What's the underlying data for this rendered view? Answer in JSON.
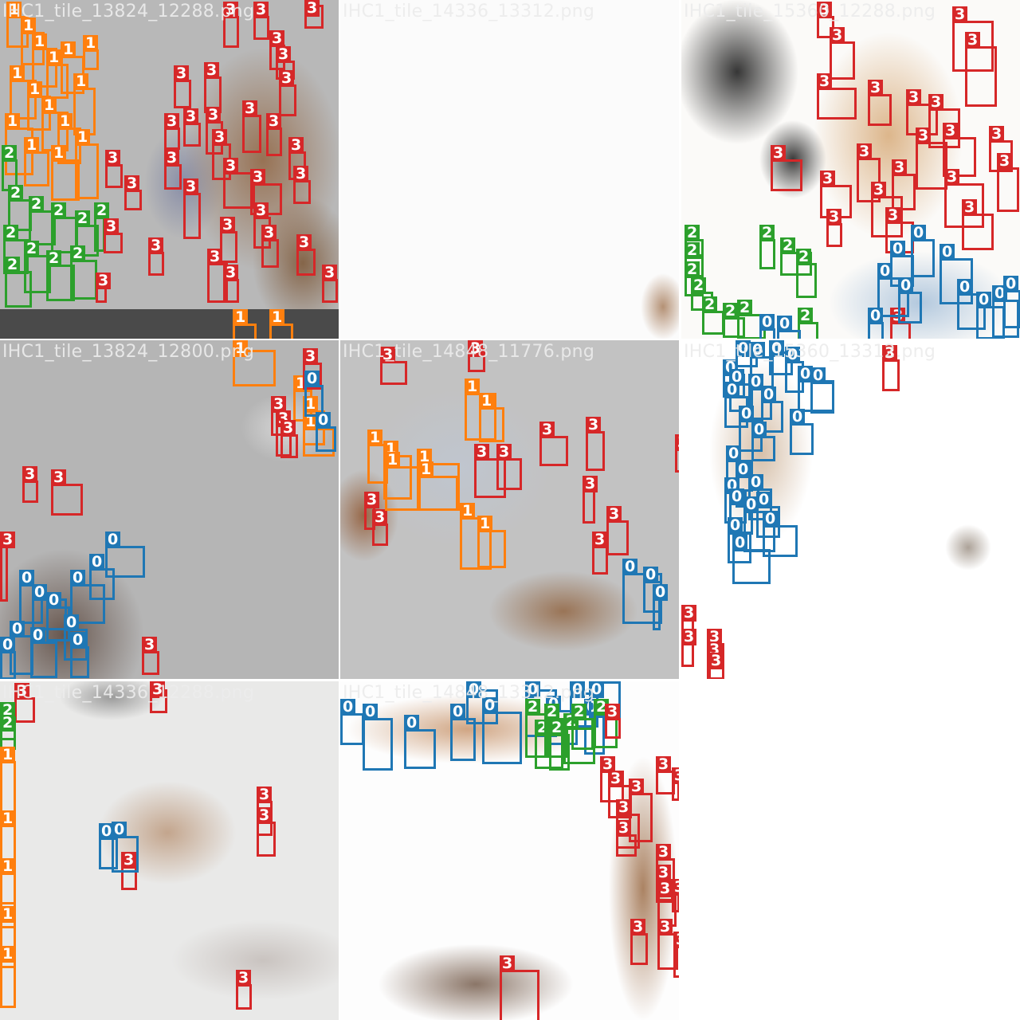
{
  "mosaic": {
    "class_colors": {
      "0": "#1f77b4",
      "1": "#ff7f0e",
      "2": "#2ca02c",
      "3": "#d62728"
    },
    "tiles": [
      {
        "title": "IHC1_tile_13824_12288.png",
        "background": "gray"
      },
      {
        "title": "IHC1_tile_14336_13312.png",
        "background": "white"
      },
      {
        "title": "IHC1_tile_15360_12288.png",
        "background": "white"
      },
      {
        "title": "IHC1_tile_13824_12800.png",
        "background": "gray"
      },
      {
        "title": "IHC1_tile_14848_11776.png",
        "background": "gray"
      },
      {
        "title": "IHC1_tile_15360_13312.png",
        "background": "white"
      },
      {
        "title": "IHC1_tile_14336_12288.png",
        "background": "light"
      },
      {
        "title": "IHC1_tile_14848_13312.png",
        "background": "white"
      }
    ]
  }
}
